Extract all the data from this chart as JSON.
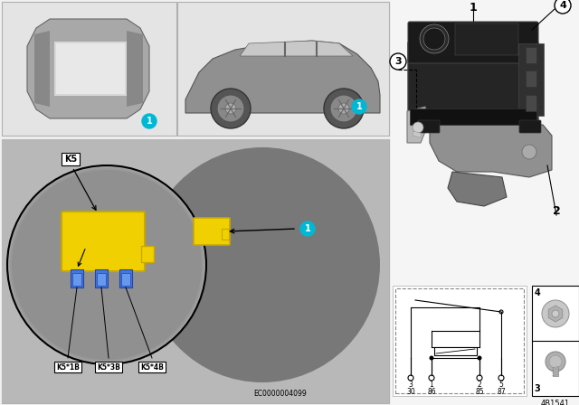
{
  "background_color": "#f0f0f0",
  "top_panel_bg": "#e2e2e2",
  "bottom_panel_bg": "#c8c8c8",
  "right_bg": "#f5f5f5",
  "yellow_color": "#f0d000",
  "yellow_edge": "#c8a800",
  "cyan_color": "#00b8d4",
  "white": "#ffffff",
  "black": "#000000",
  "dark_gray": "#404040",
  "mid_gray": "#808080",
  "light_gray": "#c0c0c0",
  "relay_dark": "#1c1c1c",
  "relay_mid": "#383838",
  "bracket_silver": "#a8a8a8",
  "bracket_dark": "#686868",
  "blue_connector": "#3366cc",
  "connector_labels": [
    "K5*1B",
    "K5*3B",
    "K5*4B"
  ],
  "diagram_id": "4B1541",
  "ec_code": "EC0000004099",
  "pin_top": [
    "3",
    "1",
    "2",
    "5"
  ],
  "pin_bot": [
    "30",
    "86",
    "85",
    "87"
  ],
  "figsize": [
    6.4,
    4.48
  ],
  "dpi": 100
}
